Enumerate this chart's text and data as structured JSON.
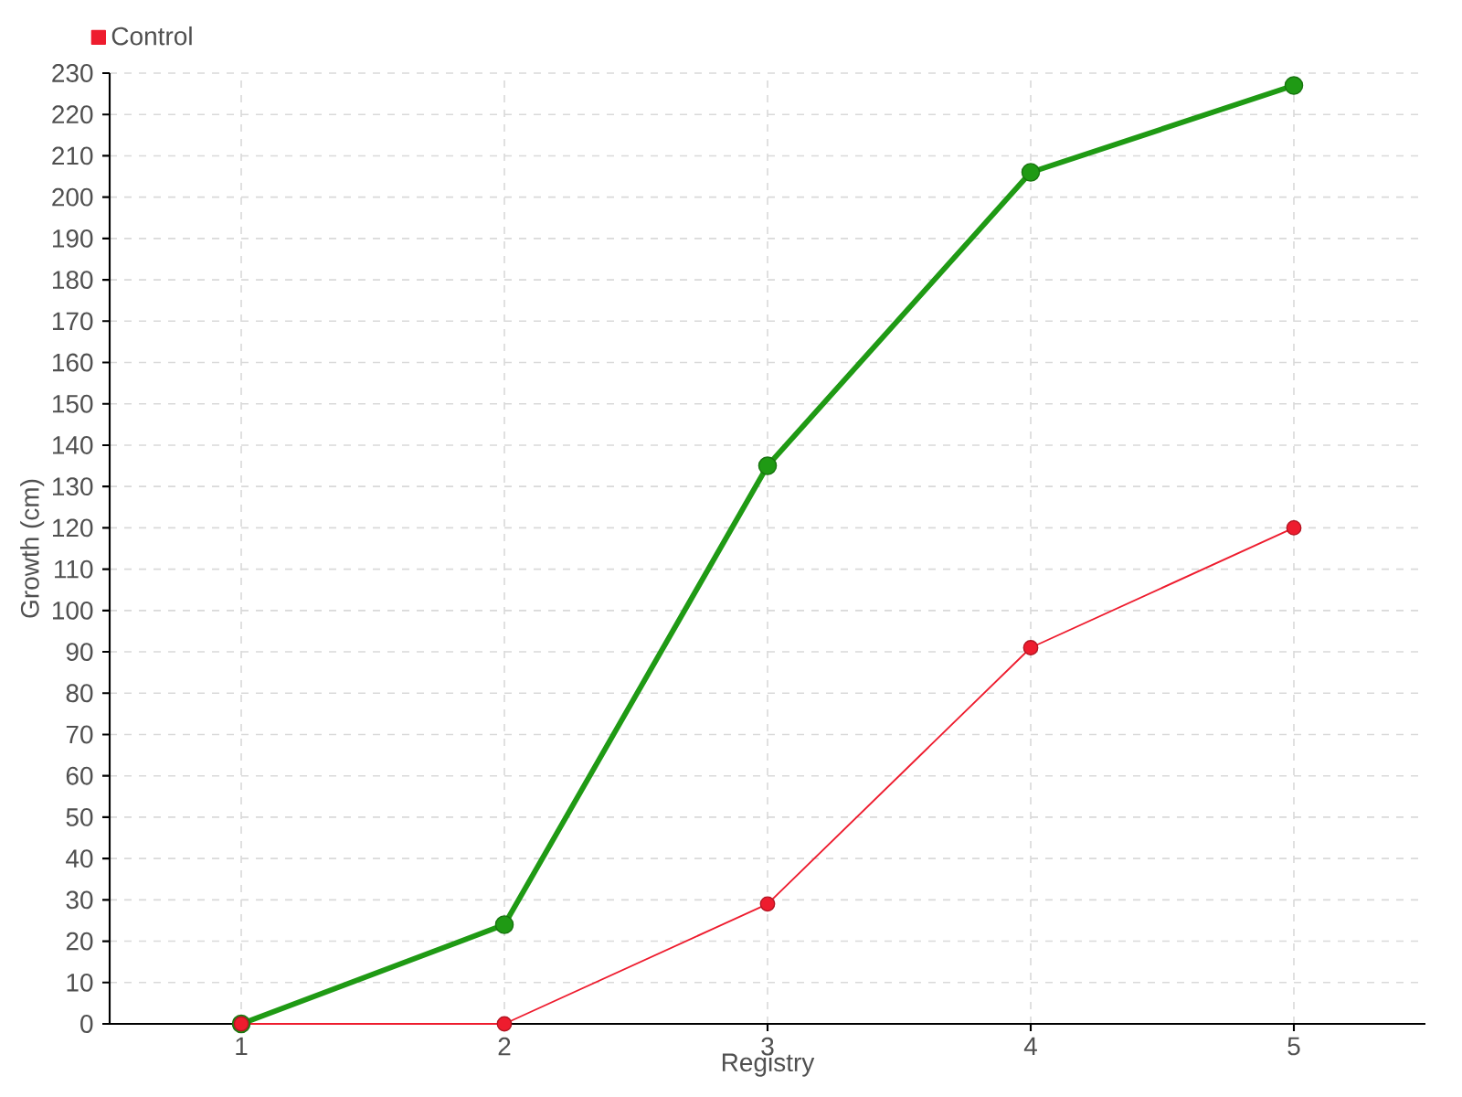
{
  "chart_data": {
    "type": "line",
    "categories": [
      "1",
      "2",
      "3",
      "4",
      "5"
    ],
    "series": [
      {
        "color": "#1f9a14",
        "values": [
          0,
          24,
          135,
          206,
          227
        ]
      },
      {
        "name": "Control",
        "color": "#ee1c2e",
        "values": [
          0,
          0,
          29,
          91,
          120
        ]
      }
    ],
    "xlabel": "Registry",
    "ylabel": "Growth (cm)",
    "ylim": [
      0,
      230
    ],
    "yticks": [
      0,
      10,
      20,
      30,
      40,
      50,
      60,
      70,
      80,
      90,
      100,
      110,
      120,
      130,
      140,
      150,
      160,
      170,
      180,
      190,
      200,
      210,
      220,
      230
    ],
    "grid": true,
    "legend": "top left",
    "marker": "circle",
    "line_style": "solid"
  }
}
